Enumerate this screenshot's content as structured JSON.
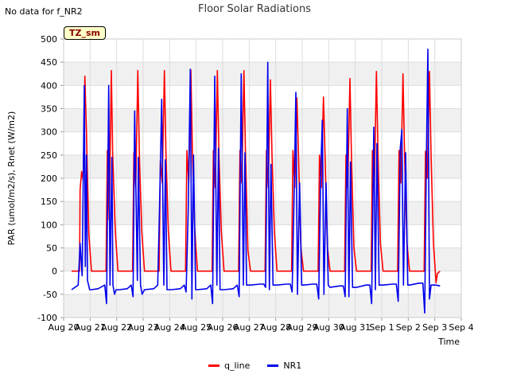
{
  "no_data_label": "No data for f_NR2",
  "badge": "TZ_sm",
  "chart_data": {
    "type": "line",
    "title": "Floor Solar Radiations",
    "xlabel": "Time",
    "ylabel": "PAR (umol/m2/s), Rnet (W/m2)",
    "ylim": [
      -100,
      500
    ],
    "yticks": [
      -100,
      -50,
      0,
      50,
      100,
      150,
      200,
      250,
      300,
      350,
      400,
      450,
      500
    ],
    "xlim": [
      0,
      15
    ],
    "xticks": [
      0,
      1,
      2,
      3,
      4,
      5,
      6,
      7,
      8,
      9,
      10,
      11,
      12,
      13,
      14,
      15
    ],
    "xticklabels": [
      "Aug 20",
      "Aug 21",
      "Aug 22",
      "Aug 23",
      "Aug 24",
      "Aug 25",
      "Aug 26",
      "Aug 27",
      "Aug 28",
      "Aug 29",
      "Aug 30",
      "Aug 31",
      "Sep 1",
      "Sep 2",
      "Sep 3",
      "Sep 4"
    ],
    "grid": true,
    "legend_position": "bottom-center",
    "series": [
      {
        "name": "q_line",
        "color": "#ff0000",
        "x": [
          0.3,
          0.6,
          0.62,
          0.68,
          0.74,
          0.8,
          0.86,
          0.95,
          1.05,
          1.1,
          1.6,
          1.65,
          1.72,
          1.8,
          1.85,
          1.95,
          2.05,
          2.1,
          2.6,
          2.65,
          2.72,
          2.8,
          2.86,
          2.95,
          3.05,
          3.1,
          3.6,
          3.65,
          3.72,
          3.8,
          3.86,
          3.95,
          4.05,
          4.1,
          4.6,
          4.65,
          4.72,
          4.8,
          4.86,
          4.95,
          5.05,
          5.1,
          5.6,
          5.65,
          5.72,
          5.8,
          5.86,
          5.95,
          6.05,
          6.1,
          6.6,
          6.65,
          6.72,
          6.8,
          6.86,
          6.95,
          7.05,
          7.1,
          7.6,
          7.65,
          7.72,
          7.8,
          7.86,
          7.95,
          8.05,
          8.1,
          8.6,
          8.65,
          8.72,
          8.8,
          8.86,
          8.95,
          9.05,
          9.1,
          9.6,
          9.65,
          9.72,
          9.8,
          9.86,
          9.95,
          10.05,
          10.1,
          10.6,
          10.65,
          10.72,
          10.8,
          10.86,
          10.95,
          11.05,
          11.1,
          11.6,
          11.65,
          11.72,
          11.8,
          11.86,
          11.95,
          12.05,
          12.1,
          12.6,
          12.65,
          12.72,
          12.8,
          12.86,
          12.95,
          13.05,
          13.1,
          13.6,
          13.65,
          13.72,
          13.8,
          13.86,
          13.95,
          14.05,
          14.1,
          14.2
        ],
        "y": [
          0,
          0,
          175,
          215,
          195,
          420,
          300,
          80,
          0,
          0,
          0,
          260,
          110,
          432,
          250,
          85,
          0,
          0,
          0,
          255,
          180,
          432,
          245,
          85,
          0,
          0,
          0,
          240,
          190,
          432,
          250,
          85,
          0,
          0,
          0,
          260,
          190,
          433,
          250,
          85,
          0,
          0,
          0,
          260,
          180,
          432,
          250,
          85,
          0,
          0,
          0,
          260,
          190,
          432,
          250,
          45,
          0,
          0,
          0,
          260,
          180,
          412,
          250,
          85,
          0,
          0,
          0,
          260,
          180,
          373,
          250,
          50,
          0,
          0,
          0,
          250,
          180,
          375,
          250,
          50,
          0,
          0,
          0,
          250,
          180,
          415,
          240,
          50,
          0,
          0,
          0,
          260,
          180,
          430,
          250,
          60,
          0,
          0,
          0,
          260,
          190,
          425,
          250,
          60,
          0,
          0,
          0,
          258,
          200,
          430,
          250,
          60,
          -25,
          -5,
          0
        ]
      },
      {
        "name": "NR1",
        "color": "#0000ee",
        "x": [
          0.3,
          0.55,
          0.62,
          0.7,
          0.78,
          0.82,
          0.86,
          0.9,
          0.98,
          1.05,
          1.3,
          1.55,
          1.62,
          1.7,
          1.75,
          1.82,
          1.86,
          1.92,
          1.98,
          2.1,
          2.4,
          2.55,
          2.62,
          2.68,
          2.78,
          2.82,
          2.9,
          2.96,
          3.05,
          3.4,
          3.55,
          3.62,
          3.7,
          3.78,
          3.84,
          3.9,
          3.98,
          4.05,
          4.4,
          4.55,
          4.62,
          4.7,
          4.78,
          4.84,
          4.9,
          4.98,
          5.05,
          5.4,
          5.55,
          5.62,
          5.7,
          5.78,
          5.84,
          5.9,
          5.98,
          6.05,
          6.4,
          6.55,
          6.62,
          6.7,
          6.78,
          6.84,
          6.9,
          6.98,
          7.05,
          7.4,
          7.55,
          7.62,
          7.7,
          7.76,
          7.82,
          7.9,
          7.98,
          8.05,
          8.4,
          8.55,
          8.62,
          8.7,
          8.76,
          8.82,
          8.9,
          8.98,
          9.05,
          9.4,
          9.55,
          9.62,
          9.7,
          9.76,
          9.82,
          9.9,
          9.98,
          10.05,
          10.4,
          10.55,
          10.62,
          10.7,
          10.76,
          10.82,
          10.9,
          10.98,
          11.05,
          11.4,
          11.55,
          11.62,
          11.7,
          11.76,
          11.82,
          11.9,
          11.98,
          12.05,
          12.4,
          12.55,
          12.62,
          12.7,
          12.76,
          12.82,
          12.9,
          12.98,
          13.05,
          13.4,
          13.55,
          13.62,
          13.68,
          13.74,
          13.8,
          13.86,
          13.92,
          14.05,
          14.2
        ],
        "y": [
          -40,
          -30,
          60,
          -10,
          400,
          10,
          250,
          -20,
          -40,
          -40,
          -38,
          -30,
          -70,
          400,
          -30,
          245,
          -30,
          -50,
          -40,
          -40,
          -38,
          -30,
          -55,
          345,
          -20,
          245,
          -30,
          -50,
          -40,
          -38,
          -30,
          145,
          370,
          -30,
          240,
          -40,
          -40,
          -40,
          -38,
          -30,
          -45,
          135,
          435,
          -60,
          250,
          -40,
          -40,
          -38,
          -30,
          -70,
          420,
          -30,
          265,
          -40,
          -40,
          -40,
          -38,
          -30,
          -55,
          425,
          -30,
          255,
          -30,
          -30,
          -30,
          -28,
          -28,
          -35,
          450,
          -40,
          230,
          -30,
          -30,
          -30,
          -28,
          -28,
          -45,
          180,
          385,
          -50,
          190,
          -30,
          -30,
          -28,
          -28,
          -60,
          215,
          325,
          -50,
          190,
          -30,
          -35,
          -32,
          -32,
          -55,
          350,
          -55,
          235,
          -35,
          -35,
          -35,
          -30,
          -30,
          -70,
          310,
          -40,
          275,
          -30,
          -30,
          -30,
          -28,
          -28,
          -65,
          265,
          305,
          -30,
          255,
          -30,
          -30,
          -26,
          -26,
          -90,
          225,
          478,
          -60,
          -30,
          -30,
          -30,
          -32
        ]
      }
    ]
  }
}
